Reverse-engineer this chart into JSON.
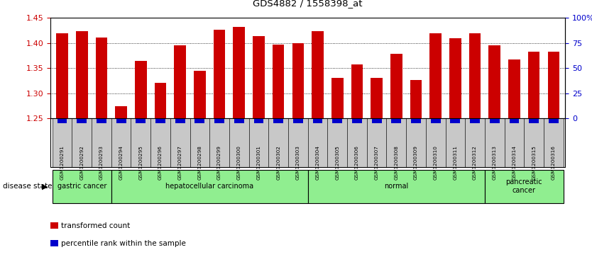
{
  "title": "GDS4882 / 1558398_at",
  "samples": [
    "GSM1200291",
    "GSM1200292",
    "GSM1200293",
    "GSM1200294",
    "GSM1200295",
    "GSM1200296",
    "GSM1200297",
    "GSM1200298",
    "GSM1200299",
    "GSM1200300",
    "GSM1200301",
    "GSM1200302",
    "GSM1200303",
    "GSM1200304",
    "GSM1200305",
    "GSM1200306",
    "GSM1200307",
    "GSM1200308",
    "GSM1200309",
    "GSM1200310",
    "GSM1200311",
    "GSM1200312",
    "GSM1200313",
    "GSM1200314",
    "GSM1200315",
    "GSM1200316"
  ],
  "values": [
    1.419,
    1.424,
    1.411,
    1.274,
    1.365,
    1.32,
    1.396,
    1.344,
    1.427,
    1.432,
    1.414,
    1.397,
    1.4,
    1.424,
    1.33,
    1.358,
    1.33,
    1.378,
    1.326,
    1.42,
    1.41,
    1.42,
    1.395,
    1.367,
    1.383,
    1.383
  ],
  "bar_color": "#cc0000",
  "blue_color": "#0000cc",
  "ylim_left": [
    1.25,
    1.45
  ],
  "yticks_left": [
    1.25,
    1.3,
    1.35,
    1.4,
    1.45
  ],
  "yticks_right": [
    0,
    25,
    50,
    75,
    100
  ],
  "ytick_labels_right": [
    "0",
    "25",
    "50",
    "75",
    "100%"
  ],
  "grid_lines": [
    1.3,
    1.35,
    1.4
  ],
  "group_boundaries": [
    {
      "label": "gastric cancer",
      "start": 0,
      "end": 2,
      "color": "#90ee90"
    },
    {
      "label": "hepatocellular carcinoma",
      "start": 3,
      "end": 12,
      "color": "#90ee90"
    },
    {
      "label": "normal",
      "start": 13,
      "end": 21,
      "color": "#90ee90"
    },
    {
      "label": "pancreatic\ncancer",
      "start": 22,
      "end": 25,
      "color": "#90ee90"
    }
  ],
  "disease_state_label": "disease state",
  "legend_items": [
    {
      "color": "#cc0000",
      "label": "transformed count"
    },
    {
      "color": "#0000cc",
      "label": "percentile rank within the sample"
    }
  ],
  "bg_color": "#ffffff",
  "tick_box_color": "#c8c8c8",
  "tick_label_color_left": "#cc0000",
  "tick_label_color_right": "#0000cc",
  "bar_width": 0.6
}
